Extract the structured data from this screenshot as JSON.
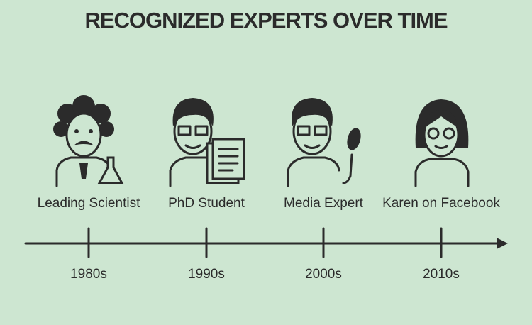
{
  "title": "RECOGNIZED EXPERTS OVER TIME",
  "timeline": [
    {
      "label": "Leading Scientist",
      "period": "1980s"
    },
    {
      "label": "PhD Student",
      "period": "1990s"
    },
    {
      "label": "Media Expert",
      "period": "2000s"
    },
    {
      "label": "Karen on Facebook",
      "period": "2010s"
    }
  ]
}
